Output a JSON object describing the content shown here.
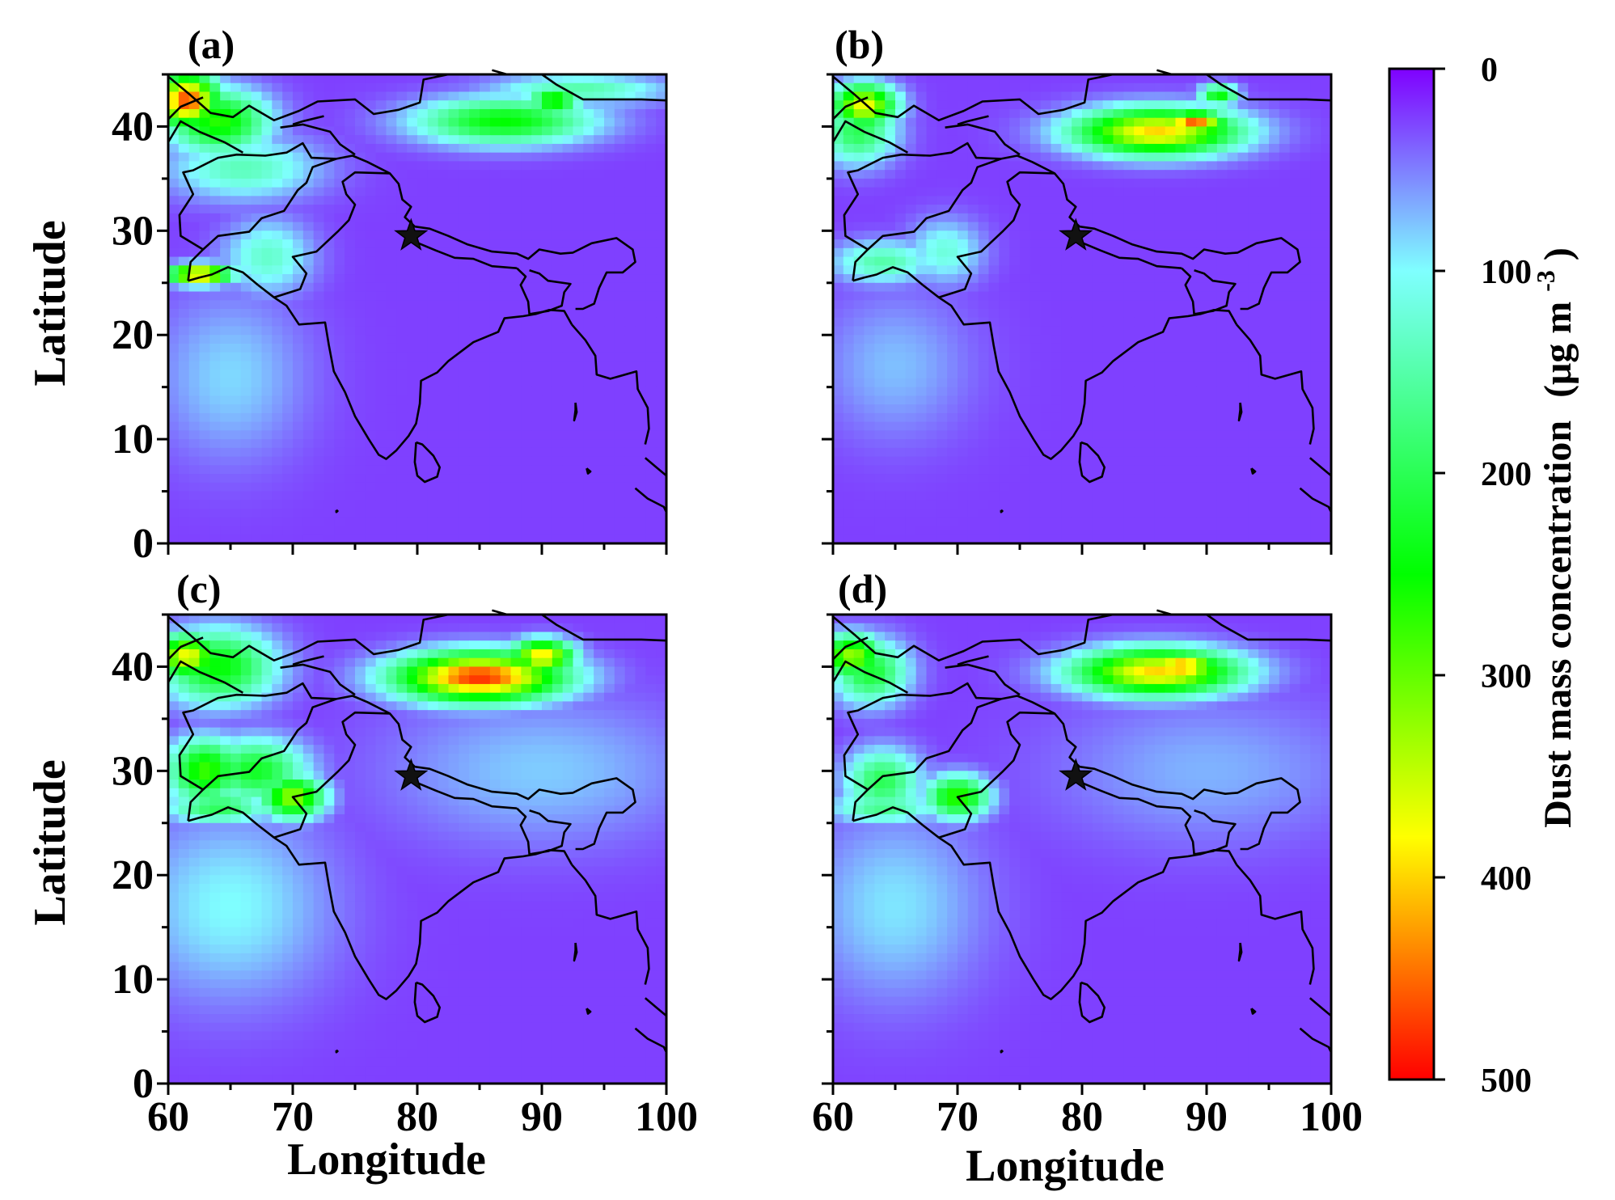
{
  "chart_data": {
    "type": "heatmap",
    "panels": [
      {
        "label": "(a)",
        "hotspots": [
          {
            "lon": 61.5,
            "lat": 42.5,
            "value": 470,
            "rlon": 2.5,
            "rlat": 2.5
          },
          {
            "lon": 64,
            "lat": 40.5,
            "value": 270,
            "rlon": 4,
            "rlat": 3
          },
          {
            "lon": 62.5,
            "lat": 25.8,
            "value": 440,
            "rlon": 2.5,
            "rlat": 0.9
          },
          {
            "lon": 66,
            "lat": 36,
            "value": 140,
            "rlon": 6,
            "rlat": 3
          },
          {
            "lon": 87,
            "lat": 40.5,
            "value": 250,
            "rlon": 7,
            "rlat": 2.2
          },
          {
            "lon": 91,
            "lat": 42.5,
            "value": 320,
            "rlon": 2,
            "rlat": 0.8
          },
          {
            "lon": 93,
            "lat": 43.5,
            "value": 150,
            "rlon": 7,
            "rlat": 1.5
          },
          {
            "lon": 68,
            "lat": 27.5,
            "value": 130,
            "rlon": 3.5,
            "rlat": 3.5
          },
          {
            "lon": 65,
            "lat": 16,
            "value": 85,
            "rlon": 6,
            "rlat": 8
          }
        ]
      },
      {
        "label": "(b)",
        "hotspots": [
          {
            "lon": 62.5,
            "lat": 42,
            "value": 380,
            "rlon": 2.5,
            "rlat": 2
          },
          {
            "lon": 62,
            "lat": 39.5,
            "value": 200,
            "rlon": 3,
            "rlat": 3
          },
          {
            "lon": 86,
            "lat": 39.5,
            "value": 400,
            "rlon": 6.5,
            "rlat": 2.2
          },
          {
            "lon": 89,
            "lat": 40.5,
            "value": 460,
            "rlon": 2.5,
            "rlat": 0.9
          },
          {
            "lon": 91,
            "lat": 43,
            "value": 250,
            "rlon": 1.5,
            "rlat": 1
          },
          {
            "lon": 64,
            "lat": 27,
            "value": 150,
            "rlon": 4,
            "rlat": 2
          },
          {
            "lon": 69,
            "lat": 28,
            "value": 120,
            "rlon": 3,
            "rlat": 3
          },
          {
            "lon": 65,
            "lat": 17,
            "value": 75,
            "rlon": 6,
            "rlat": 7
          }
        ]
      },
      {
        "label": "(c)",
        "hotspots": [
          {
            "lon": 61.5,
            "lat": 41,
            "value": 380,
            "rlon": 2.5,
            "rlat": 2
          },
          {
            "lon": 64,
            "lat": 40,
            "value": 250,
            "rlon": 4.5,
            "rlat": 3.5
          },
          {
            "lon": 85,
            "lat": 39,
            "value": 480,
            "rlon": 6.5,
            "rlat": 2.3
          },
          {
            "lon": 90,
            "lat": 41,
            "value": 400,
            "rlon": 2.5,
            "rlat": 1.5
          },
          {
            "lon": 70,
            "lat": 27.5,
            "value": 330,
            "rlon": 2.5,
            "rlat": 2
          },
          {
            "lon": 63,
            "lat": 30,
            "value": 280,
            "rlon": 3,
            "rlat": 3
          },
          {
            "lon": 67,
            "lat": 30,
            "value": 230,
            "rlon": 4,
            "rlat": 3
          },
          {
            "lon": 64,
            "lat": 26.5,
            "value": 200,
            "rlon": 4,
            "rlat": 1.5
          },
          {
            "lon": 65,
            "lat": 17,
            "value": 100,
            "rlon": 8,
            "rlat": 9
          },
          {
            "lon": 90,
            "lat": 30,
            "value": 80,
            "rlon": 12,
            "rlat": 7
          }
        ]
      },
      {
        "label": "(d)",
        "hotspots": [
          {
            "lon": 61.5,
            "lat": 41,
            "value": 330,
            "rlon": 2.5,
            "rlat": 2
          },
          {
            "lon": 63,
            "lat": 39.5,
            "value": 220,
            "rlon": 3,
            "rlat": 3
          },
          {
            "lon": 86,
            "lat": 39.5,
            "value": 400,
            "rlon": 6.5,
            "rlat": 2.2
          },
          {
            "lon": 88,
            "lat": 40,
            "value": 470,
            "rlon": 3,
            "rlat": 1
          },
          {
            "lon": 70,
            "lat": 27.5,
            "value": 280,
            "rlon": 2.5,
            "rlat": 2
          },
          {
            "lon": 64,
            "lat": 29,
            "value": 200,
            "rlon": 3,
            "rlat": 3
          },
          {
            "lon": 64,
            "lat": 26.5,
            "value": 170,
            "rlon": 4,
            "rlat": 1.5
          },
          {
            "lon": 65,
            "lat": 17,
            "value": 90,
            "rlon": 7,
            "rlat": 9
          },
          {
            "lon": 90,
            "lat": 30,
            "value": 70,
            "rlon": 12,
            "rlat": 7
          }
        ]
      }
    ],
    "background_value": 25,
    "x": {
      "label": "Longitude",
      "range": [
        60,
        100
      ],
      "ticks": [
        60,
        70,
        80,
        90,
        100
      ]
    },
    "y": {
      "label": "Latitude",
      "range": [
        0,
        45
      ],
      "ticks": [
        0,
        10,
        20,
        30,
        40
      ]
    },
    "colorbar": {
      "title": "Dust mass concentration",
      "unit_prefix": "(μg m",
      "unit_exp": "-3",
      "unit_suffix": ")",
      "range": [
        0,
        500
      ],
      "ticks": [
        0,
        100,
        200,
        300,
        400,
        500
      ],
      "orientation": "reversed",
      "stops": [
        {
          "value": 0,
          "color": "#7f00ff"
        },
        {
          "value": 100,
          "color": "#7fffff"
        },
        {
          "value": 250,
          "color": "#00ff00"
        },
        {
          "value": 380,
          "color": "#ffff00"
        },
        {
          "value": 500,
          "color": "#ff0000"
        }
      ]
    },
    "marker": {
      "type": "star",
      "lon": 79.5,
      "lat": 29.5,
      "color": "#111111"
    }
  }
}
